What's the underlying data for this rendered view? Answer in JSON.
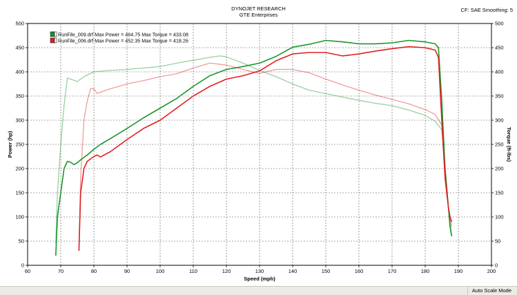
{
  "header": {
    "title": "DYNOJET RESEARCH",
    "subtitle": "GTE Enterprises",
    "cf_text": "CF: SAE  Smoothing: 5"
  },
  "status_bar": {
    "mode": "Auto Scale Mode"
  },
  "chart_data": {
    "type": "line",
    "xlabel": "Speed (mph)",
    "ylabel_left": "Power (hp)",
    "ylabel_right": "Torque (ft-lbs)",
    "xlim": [
      60,
      200
    ],
    "ylim": [
      0,
      500
    ],
    "x_ticks": [
      60,
      70,
      80,
      90,
      100,
      110,
      120,
      130,
      140,
      150,
      160,
      170,
      180,
      190,
      200
    ],
    "y_ticks": [
      0,
      50,
      100,
      150,
      200,
      250,
      300,
      350,
      400,
      450,
      500
    ],
    "grid": true,
    "legend_position": "top-left",
    "legend": [
      "RunFile_009.drf Max Power = 464.75 Max Torque = 433.08",
      "RunFile_006.drf Max Power = 452.35 Max Torque = 418.26"
    ],
    "series": [
      {
        "name": "RunFile_009.drf",
        "color": "#19962d",
        "power": {
          "x": [
            68.5,
            69,
            70,
            71,
            72,
            73,
            74,
            75,
            76,
            78,
            80,
            82,
            85,
            90,
            95,
            100,
            105,
            110,
            115,
            120,
            125,
            130,
            135,
            140,
            145,
            150,
            155,
            160,
            165,
            170,
            175,
            180,
            183,
            184,
            185,
            186,
            187,
            187.5,
            188
          ],
          "y": [
            20,
            100,
            150,
            200,
            215,
            213,
            208,
            212,
            218,
            228,
            240,
            250,
            262,
            283,
            305,
            325,
            345,
            370,
            392,
            405,
            411,
            418,
            432,
            451,
            457,
            465,
            462,
            458,
            458,
            460,
            465,
            462,
            458,
            450,
            340,
            200,
            120,
            80,
            60
          ]
        },
        "torque": {
          "x": [
            68.5,
            69,
            70,
            71,
            72,
            73,
            75,
            77,
            80,
            85,
            90,
            95,
            100,
            105,
            110,
            115,
            118,
            120,
            125,
            130,
            135,
            140,
            145,
            150,
            155,
            160,
            165,
            170,
            175,
            180,
            183,
            185,
            186,
            187,
            188
          ],
          "y": [
            45,
            150,
            250,
            330,
            387,
            385,
            380,
            390,
            400,
            403,
            405,
            408,
            411,
            418,
            424,
            430,
            433,
            431,
            418,
            403,
            390,
            375,
            362,
            355,
            348,
            341,
            335,
            330,
            321,
            310,
            298,
            280,
            200,
            120,
            60
          ]
        }
      },
      {
        "name": "RunFile_006.drf",
        "color": "#e02020",
        "power": {
          "x": [
            75.5,
            76,
            77,
            78,
            79,
            80,
            81,
            82,
            85,
            90,
            95,
            100,
            105,
            110,
            115,
            120,
            125,
            130,
            135,
            140,
            145,
            150,
            155,
            160,
            165,
            170,
            175,
            180,
            183,
            184,
            185,
            186,
            187,
            187.5,
            188
          ],
          "y": [
            30,
            150,
            200,
            215,
            220,
            225,
            228,
            224,
            235,
            260,
            283,
            300,
            325,
            350,
            370,
            385,
            392,
            402,
            423,
            437,
            440,
            440,
            433,
            437,
            443,
            448,
            452,
            450,
            445,
            430,
            300,
            180,
            120,
            100,
            90
          ]
        },
        "torque": {
          "x": [
            75.5,
            76,
            77,
            78,
            79,
            80,
            81,
            82,
            85,
            90,
            95,
            100,
            105,
            110,
            115,
            120,
            125,
            130,
            135,
            140,
            145,
            150,
            155,
            160,
            165,
            170,
            175,
            180,
            183,
            185,
            186,
            187,
            188
          ],
          "y": [
            40,
            180,
            300,
            340,
            365,
            365,
            355,
            358,
            365,
            375,
            382,
            390,
            396,
            408,
            418,
            414,
            405,
            397,
            405,
            405,
            398,
            385,
            373,
            362,
            352,
            343,
            334,
            322,
            312,
            290,
            200,
            120,
            80
          ]
        }
      }
    ]
  }
}
